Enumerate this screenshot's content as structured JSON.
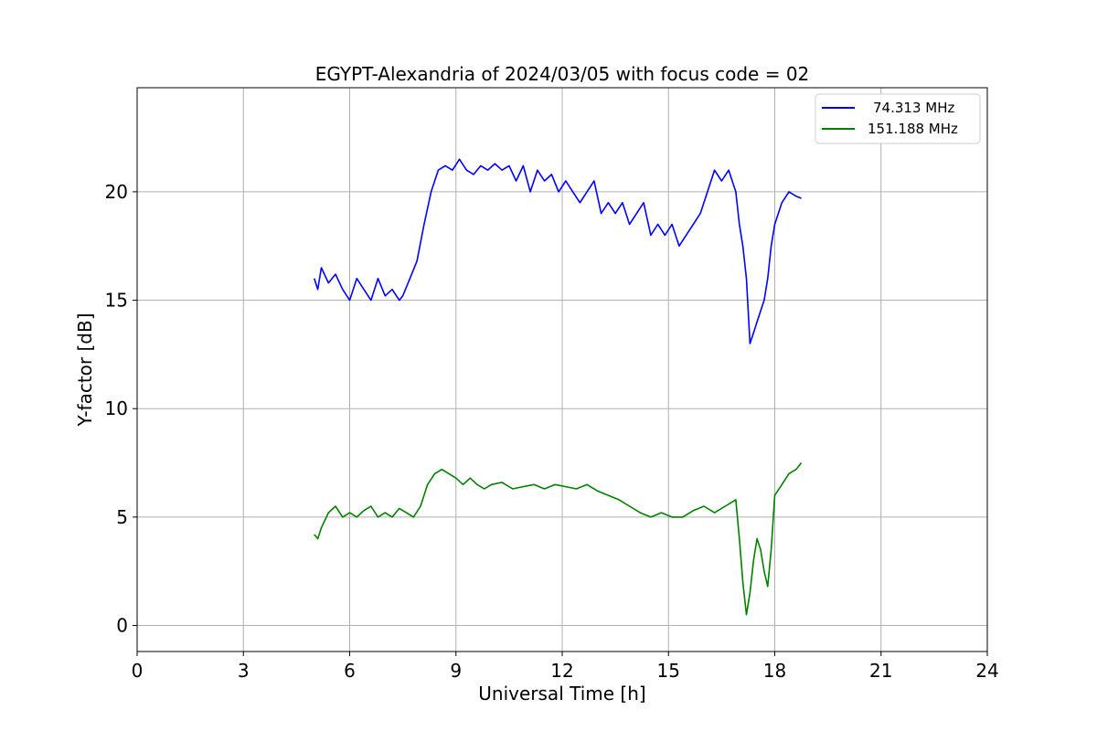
{
  "chart_data": {
    "type": "line",
    "title": "EGYPT-Alexandria of 2024/03/05 with focus code = 02",
    "xlabel": "Universal Time [h]",
    "ylabel": "Y-factor [dB]",
    "xlim": [
      0,
      24
    ],
    "ylim": [
      -1.2,
      24.8
    ],
    "xticks": [
      0,
      3,
      6,
      9,
      12,
      15,
      18,
      21,
      24
    ],
    "yticks": [
      0,
      5,
      10,
      15,
      20
    ],
    "grid": true,
    "legend_position": "top-right",
    "series": [
      {
        "name": "74.313 MHz",
        "color": "#0000ff",
        "x": [
          5.0,
          5.1,
          5.2,
          5.4,
          5.6,
          5.8,
          6.0,
          6.2,
          6.4,
          6.6,
          6.8,
          7.0,
          7.2,
          7.4,
          7.5,
          7.7,
          7.9,
          8.1,
          8.3,
          8.5,
          8.7,
          8.9,
          9.1,
          9.3,
          9.5,
          9.7,
          9.9,
          10.1,
          10.3,
          10.5,
          10.7,
          10.9,
          11.1,
          11.3,
          11.5,
          11.7,
          11.9,
          12.1,
          12.3,
          12.5,
          12.7,
          12.9,
          13.1,
          13.3,
          13.5,
          13.7,
          13.9,
          14.1,
          14.3,
          14.5,
          14.7,
          14.9,
          15.1,
          15.3,
          15.5,
          15.7,
          15.9,
          16.1,
          16.3,
          16.5,
          16.7,
          16.9,
          17.0,
          17.1,
          17.2,
          17.3,
          17.4,
          17.5,
          17.6,
          17.7,
          17.8,
          17.9,
          18.0,
          18.2,
          18.4,
          18.6,
          18.75
        ],
        "y": [
          16.0,
          15.5,
          16.5,
          15.8,
          16.2,
          15.5,
          15.0,
          16.0,
          15.5,
          15.0,
          16.0,
          15.2,
          15.5,
          15.0,
          15.2,
          16.0,
          16.8,
          18.5,
          20.0,
          21.0,
          21.2,
          21.0,
          21.5,
          21.0,
          20.8,
          21.2,
          21.0,
          21.3,
          21.0,
          21.2,
          20.5,
          21.2,
          20.0,
          21.0,
          20.5,
          20.8,
          20.0,
          20.5,
          20.0,
          19.5,
          20.0,
          20.5,
          19.0,
          19.5,
          19.0,
          19.5,
          18.5,
          19.0,
          19.5,
          18.0,
          18.5,
          18.0,
          18.5,
          17.5,
          18.0,
          18.5,
          19.0,
          20.0,
          21.0,
          20.5,
          21.0,
          20.0,
          18.5,
          17.5,
          16.0,
          13.0,
          13.5,
          14.0,
          14.5,
          15.0,
          16.0,
          17.5,
          18.5,
          19.5,
          20.0,
          19.8,
          19.7
        ]
      },
      {
        "name": "151.188 MHz",
        "color": "#008000",
        "x": [
          5.0,
          5.1,
          5.2,
          5.4,
          5.6,
          5.8,
          6.0,
          6.2,
          6.4,
          6.6,
          6.8,
          7.0,
          7.2,
          7.4,
          7.6,
          7.8,
          8.0,
          8.2,
          8.4,
          8.6,
          8.8,
          9.0,
          9.2,
          9.4,
          9.6,
          9.8,
          10.0,
          10.3,
          10.6,
          10.9,
          11.2,
          11.5,
          11.8,
          12.1,
          12.4,
          12.7,
          13.0,
          13.3,
          13.6,
          13.9,
          14.2,
          14.5,
          14.8,
          15.1,
          15.4,
          15.7,
          16.0,
          16.3,
          16.6,
          16.9,
          17.0,
          17.1,
          17.2,
          17.3,
          17.4,
          17.5,
          17.6,
          17.7,
          17.8,
          17.9,
          18.0,
          18.2,
          18.4,
          18.6,
          18.75
        ],
        "y": [
          4.2,
          4.0,
          4.5,
          5.2,
          5.5,
          5.0,
          5.2,
          5.0,
          5.3,
          5.5,
          5.0,
          5.2,
          5.0,
          5.4,
          5.2,
          5.0,
          5.5,
          6.5,
          7.0,
          7.2,
          7.0,
          6.8,
          6.5,
          6.8,
          6.5,
          6.3,
          6.5,
          6.6,
          6.3,
          6.4,
          6.5,
          6.3,
          6.5,
          6.4,
          6.3,
          6.5,
          6.2,
          6.0,
          5.8,
          5.5,
          5.2,
          5.0,
          5.2,
          5.0,
          5.0,
          5.3,
          5.5,
          5.2,
          5.5,
          5.8,
          4.0,
          2.0,
          0.5,
          1.5,
          3.0,
          4.0,
          3.5,
          2.5,
          1.8,
          3.5,
          6.0,
          6.5,
          7.0,
          7.2,
          7.5
        ]
      }
    ]
  }
}
